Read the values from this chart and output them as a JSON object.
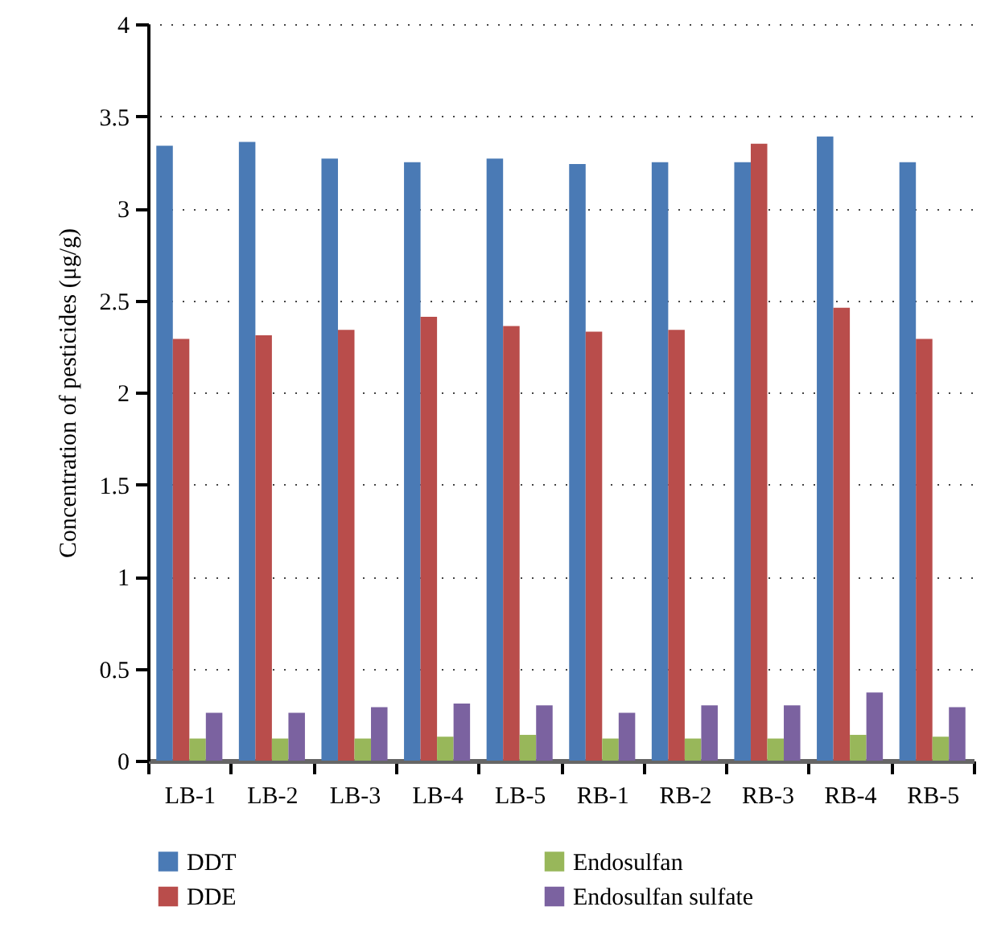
{
  "chart_data": {
    "type": "bar",
    "ylabel": "Concentration of pesticides (μg/g)",
    "categories": [
      "LB-1",
      "LB-2",
      "LB-3",
      "LB-4",
      "LB-5",
      "RB-1",
      "RB-2",
      "RB-3",
      "RB-4",
      "RB-5"
    ],
    "series": [
      {
        "name": "DDT",
        "color": "#4a7ab5",
        "values": [
          3.34,
          3.36,
          3.27,
          3.25,
          3.27,
          3.24,
          3.25,
          3.25,
          3.39,
          3.25
        ]
      },
      {
        "name": "DDE",
        "color": "#b94d4b",
        "values": [
          2.29,
          2.31,
          2.34,
          2.41,
          2.36,
          2.33,
          2.34,
          3.35,
          2.46,
          2.29
        ]
      },
      {
        "name": "Endosulfan",
        "color": "#98b75a",
        "values": [
          0.12,
          0.12,
          0.12,
          0.13,
          0.14,
          0.12,
          0.12,
          0.12,
          0.14,
          0.13
        ]
      },
      {
        "name": "Endosulfan sulfate",
        "color": "#7b62a0",
        "values": [
          0.26,
          0.26,
          0.29,
          0.31,
          0.3,
          0.26,
          0.3,
          0.3,
          0.37,
          0.29
        ]
      }
    ],
    "ylim": [
      0,
      4
    ],
    "yticks": [
      0,
      0.5,
      1,
      1.5,
      2,
      2.5,
      3,
      3.5,
      4
    ],
    "grid": "y",
    "legend": "bottom"
  }
}
